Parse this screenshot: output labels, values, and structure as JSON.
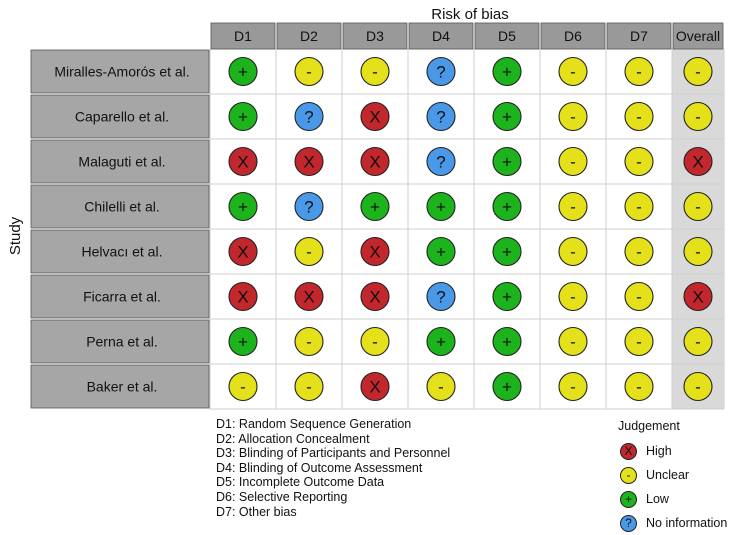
{
  "chart_data": {
    "type": "table",
    "title": "Risk of bias",
    "ylabel": "Study",
    "columns": [
      "D1",
      "D2",
      "D3",
      "D4",
      "D5",
      "D6",
      "D7",
      "Overall"
    ],
    "studies": [
      {
        "name": "Miralles-Amorós et al.",
        "judgements": [
          "+",
          "-",
          "-",
          "?",
          "+",
          "-",
          "-",
          "-"
        ]
      },
      {
        "name": "Caparello et al.",
        "judgements": [
          "+",
          "?",
          "X",
          "?",
          "+",
          "-",
          "-",
          "-"
        ]
      },
      {
        "name": "Malaguti et al.",
        "judgements": [
          "X",
          "X",
          "X",
          "?",
          "+",
          "-",
          "-",
          "X"
        ]
      },
      {
        "name": "Chilelli et al.",
        "judgements": [
          "+",
          "?",
          "+",
          "+",
          "+",
          "-",
          "-",
          "-"
        ]
      },
      {
        "name": "Helvacı et al.",
        "judgements": [
          "X",
          "-",
          "X",
          "+",
          "+",
          "-",
          "-",
          "-"
        ]
      },
      {
        "name": "Ficarra et al.",
        "judgements": [
          "X",
          "X",
          "X",
          "?",
          "+",
          "-",
          "-",
          "X"
        ]
      },
      {
        "name": "Perna et al.",
        "judgements": [
          "+",
          "-",
          "-",
          "+",
          "+",
          "-",
          "-",
          "-"
        ]
      },
      {
        "name": "Baker et al.",
        "judgements": [
          "-",
          "-",
          "X",
          "-",
          "+",
          "-",
          "-",
          "-"
        ]
      }
    ],
    "domain_definitions": [
      "D1: Random Sequence Generation",
      "D2: Allocation Concealment",
      "D3: Blinding of Participants and Personnel",
      "D4: Blinding of Outcome Assessment",
      "D5: Incomplete Outcome Data",
      "D6: Selective Reporting",
      "D7: Other bias"
    ],
    "legend": {
      "title": "Judgement",
      "items": [
        {
          "symbol": "X",
          "label": "High",
          "color": "#c1272d"
        },
        {
          "symbol": "-",
          "label": "Unclear",
          "color": "#e4e11b"
        },
        {
          "symbol": "+",
          "label": "Low",
          "color": "#1db31d"
        },
        {
          "symbol": "?",
          "label": "No information",
          "color": "#4a98e8"
        }
      ]
    },
    "colors": {
      "header_bg": "#999999",
      "study_bg": "#a6a6a6",
      "overall_bg": "#d9d9d9",
      "grid_line": "#cfcfcf"
    }
  }
}
